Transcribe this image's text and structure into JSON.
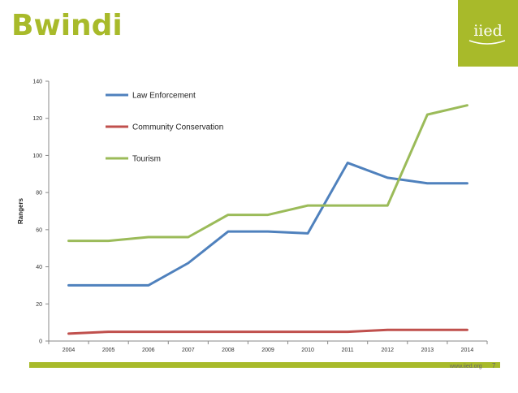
{
  "slide": {
    "title": "Bwindi",
    "logo": "iied",
    "footer_url": "www.iied.org",
    "page_number": "7"
  },
  "colors": {
    "accent": "#a8ba2a",
    "law": "#4f81bd",
    "community": "#c0504d",
    "tourism": "#9bbb59"
  },
  "chart_data": {
    "type": "line",
    "title": "",
    "xlabel": "",
    "ylabel": "Rangers",
    "categories": [
      "2004",
      "2005",
      "2006",
      "2007",
      "2008",
      "2009",
      "2010",
      "2011",
      "2012",
      "2013",
      "2014"
    ],
    "yticks": [
      0,
      20,
      40,
      60,
      80,
      100,
      120,
      140
    ],
    "ylim": [
      0,
      140
    ],
    "grid": false,
    "legend_position": "top-left",
    "series": [
      {
        "name": "Law Enforcement",
        "color": "#4f81bd",
        "values": [
          30,
          30,
          30,
          42,
          59,
          59,
          58,
          96,
          88,
          85,
          85
        ]
      },
      {
        "name": "Community Conservation",
        "color": "#c0504d",
        "values": [
          4,
          5,
          5,
          5,
          5,
          5,
          5,
          5,
          6,
          6,
          6
        ]
      },
      {
        "name": "Tourism",
        "color": "#9bbb59",
        "values": [
          54,
          54,
          56,
          56,
          68,
          68,
          73,
          73,
          73,
          122,
          127
        ]
      }
    ]
  }
}
